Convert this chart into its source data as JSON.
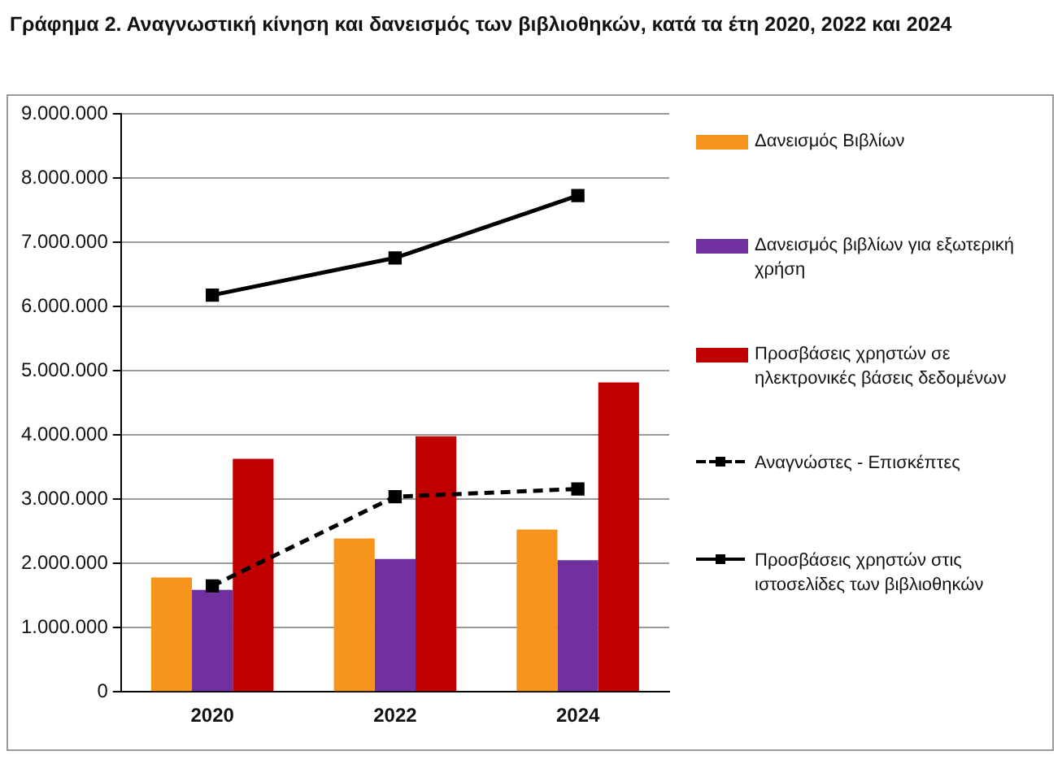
{
  "chart_data": {
    "type": "bar",
    "title": "Γράφημα 2. Αναγνωστική κίνηση και δανεισμός των βιβλιοθηκών, κατά τα έτη 2020, 2022 και 2024",
    "categories": [
      "2020",
      "2022",
      "2024"
    ],
    "series": [
      {
        "name": "Δανεισμός Βιβλίων",
        "color": "#f7941d",
        "values": [
          1780000,
          2390000,
          2530000
        ]
      },
      {
        "name": "Δανεισμός βιβλίων για εξωτερική χρήση",
        "color": "#7030a0",
        "values": [
          1590000,
          2070000,
          2050000
        ]
      },
      {
        "name": "Προσβάσεις χρηστών σε ηλεκτρονικές βάσεις δεδομένων",
        "color": "#c00000",
        "values": [
          3630000,
          3980000,
          4820000
        ]
      },
      {
        "name": "Αναγνώστες - Επισκέπτες",
        "type": "line",
        "color": "#000000",
        "marker": "square",
        "line_style": "dashed",
        "values": [
          1650000,
          3040000,
          3160000
        ]
      },
      {
        "name": "Προσβάσεις χρηστών στις ιστοσελίδες των βιβλιοθηκών",
        "type": "line",
        "color": "#000000",
        "marker": "square",
        "line_style": "solid",
        "values": [
          6180000,
          6760000,
          7730000
        ]
      }
    ],
    "ylim": [
      0,
      9000000
    ],
    "yticks": [
      {
        "value": 0,
        "label": "0"
      },
      {
        "value": 1000000,
        "label": "1.000.000"
      },
      {
        "value": 2000000,
        "label": "2.000.000"
      },
      {
        "value": 3000000,
        "label": "3.000.000"
      },
      {
        "value": 4000000,
        "label": "4.000.000"
      },
      {
        "value": 5000000,
        "label": "5.000.000"
      },
      {
        "value": 6000000,
        "label": "6.000.000"
      },
      {
        "value": 7000000,
        "label": "7.000.000"
      },
      {
        "value": 8000000,
        "label": "8.000.000"
      },
      {
        "value": 9000000,
        "label": "9.000.000"
      }
    ],
    "grid": "y",
    "legend": "right"
  }
}
